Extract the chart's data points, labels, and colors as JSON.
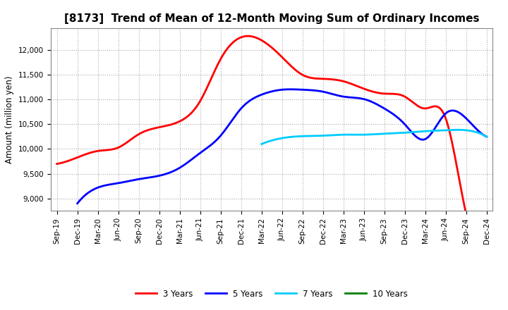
{
  "title": "[8173]  Trend of Mean of 12-Month Moving Sum of Ordinary Incomes",
  "ylabel": "Amount (million yen)",
  "xlabels": [
    "Sep-19",
    "Dec-19",
    "Mar-20",
    "Jun-20",
    "Sep-20",
    "Dec-20",
    "Mar-21",
    "Jun-21",
    "Sep-21",
    "Dec-21",
    "Mar-22",
    "Jun-22",
    "Sep-22",
    "Dec-22",
    "Mar-23",
    "Jun-23",
    "Sep-23",
    "Dec-23",
    "Mar-24",
    "Jun-24",
    "Sep-24",
    "Dec-24"
  ],
  "ylim": [
    8750,
    12450
  ],
  "yticks": [
    9000,
    9500,
    10000,
    10500,
    11000,
    11500,
    12000
  ],
  "series": [
    {
      "label": "3 Years",
      "color": "#FF0000",
      "data_x": [
        0,
        1,
        2,
        3,
        4,
        5,
        6,
        7,
        8,
        9,
        10,
        11,
        12,
        13,
        14,
        15,
        16,
        17,
        18,
        19,
        20,
        21
      ],
      "data_y": [
        9700,
        9830,
        9960,
        10030,
        10300,
        10440,
        10560,
        10970,
        11820,
        12260,
        12200,
        11860,
        11500,
        11420,
        11370,
        11220,
        11120,
        11060,
        10820,
        10620,
        8680,
        8600
      ]
    },
    {
      "label": "5 Years",
      "color": "#0000FF",
      "data_x": [
        1,
        2,
        3,
        4,
        5,
        6,
        7,
        8,
        9,
        10,
        11,
        12,
        13,
        14,
        15,
        16,
        17,
        18,
        19,
        20,
        21
      ],
      "data_y": [
        8900,
        9220,
        9310,
        9390,
        9460,
        9620,
        9920,
        10270,
        10820,
        11100,
        11200,
        11200,
        11160,
        11060,
        11010,
        10820,
        10500,
        10200,
        10720,
        10620,
        10250
      ]
    },
    {
      "label": "7 Years",
      "color": "#00CCFF",
      "data_x": [
        10,
        11,
        12,
        13,
        14,
        15,
        16,
        17,
        18,
        19,
        20,
        21
      ],
      "data_y": [
        10100,
        10220,
        10260,
        10270,
        10290,
        10290,
        10310,
        10330,
        10360,
        10380,
        10380,
        10250
      ]
    },
    {
      "label": "10 Years",
      "color": "#008000",
      "data_x": [],
      "data_y": []
    }
  ],
  "legend_loc": "lower center",
  "background_color": "#FFFFFF",
  "grid_color": "#AAAAAA",
  "title_fontsize": 11,
  "ylabel_fontsize": 8.5,
  "tick_fontsize": 7.5,
  "legend_fontsize": 8.5,
  "linewidth": 2.0
}
